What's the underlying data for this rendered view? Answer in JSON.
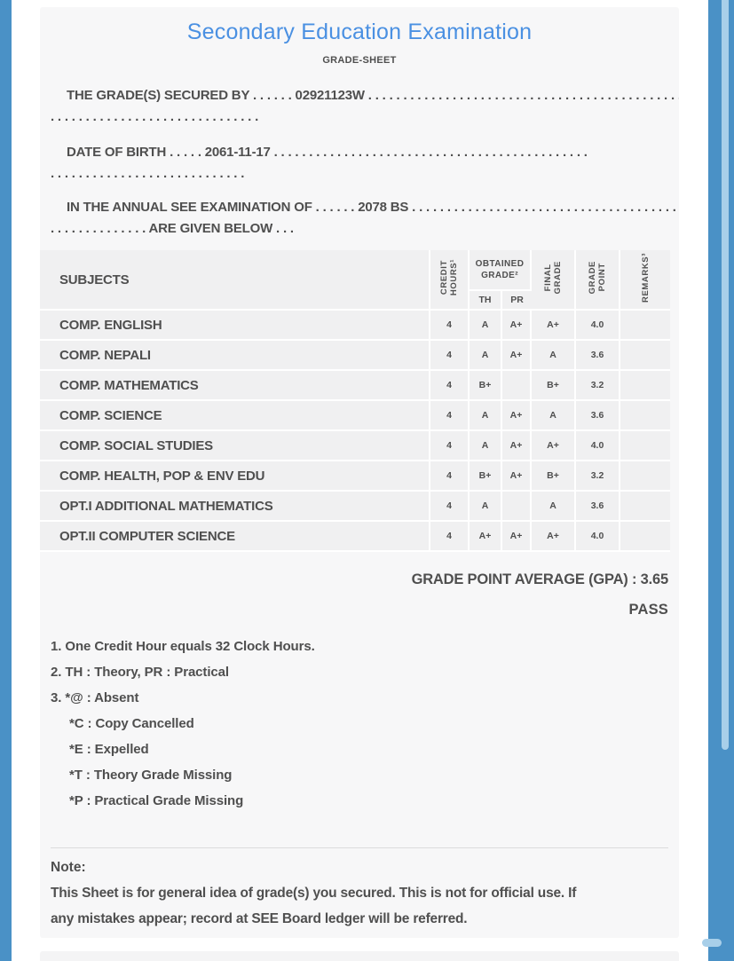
{
  "colors": {
    "accent_blue": "#4a91c6",
    "scroll_thumb": "#a8cfe9",
    "title_blue": "#4a90e2",
    "card_bg": "#f7f7f8",
    "cell_bg": "#f0f0f1",
    "text": "#4f4f4f",
    "divider": "#dcdcdc"
  },
  "header": {
    "title": "Secondary Education Examination",
    "subtitle": "GRADE-SHEET"
  },
  "intro": {
    "grades_secured": {
      "line1": "THE GRADE(S) SECURED BY . . . . . . 02921123W . . . . . . . . . . . . . . . . . . . . . . . . . . . . . . . . . . . . . . . . . . . . .",
      "line2": ". . . . . . . . . . . . . . . . . . . . . . . . . . . . . ."
    },
    "date_of_birth": {
      "line1": "DATE OF BIRTH . . . . . 2061-11-17 . . . . . . . . . . . . . . . . . . . . . . . . . . . . . . . . . . . . . . . . . . . . .",
      "line2": ". . . . . . . . . . . . . . . . . . . . . . . . . . . ."
    },
    "examination": {
      "line1": "IN THE ANNUAL SEE EXAMINATION OF . . . . . . 2078 BS . . . . . . . . . . . . . . . . . . . . . . . . . . . . . . . . . . . . . . . . . . . . .",
      "line2": ". . . . . . . . . . . . . . ARE GIVEN BELOW . . ."
    }
  },
  "table": {
    "headers": {
      "subjects": "SUBJECTS",
      "credit_hours": "CREDIT\nHOURS¹",
      "obtained_grade": "OBTAINED\nGRADE²",
      "th": "TH",
      "pr": "PR",
      "final_grade": "FINAL\nGRADE",
      "grade_point": "GRADE\nPOINT",
      "remarks": "REMARKS³"
    },
    "rows": [
      {
        "subject": "COMP. ENGLISH",
        "credit": "4",
        "th": "A",
        "pr": "A+",
        "final": "A+",
        "point": "4.0",
        "remarks": ""
      },
      {
        "subject": "COMP. NEPALI",
        "credit": "4",
        "th": "A",
        "pr": "A+",
        "final": "A",
        "point": "3.6",
        "remarks": ""
      },
      {
        "subject": "COMP. MATHEMATICS",
        "credit": "4",
        "th": "B+",
        "pr": "",
        "final": "B+",
        "point": "3.2",
        "remarks": ""
      },
      {
        "subject": "COMP. SCIENCE",
        "credit": "4",
        "th": "A",
        "pr": "A+",
        "final": "A",
        "point": "3.6",
        "remarks": ""
      },
      {
        "subject": "COMP. SOCIAL STUDIES",
        "credit": "4",
        "th": "A",
        "pr": "A+",
        "final": "A+",
        "point": "4.0",
        "remarks": ""
      },
      {
        "subject": "COMP. HEALTH, POP & ENV EDU",
        "credit": "4",
        "th": "B+",
        "pr": "A+",
        "final": "B+",
        "point": "3.2",
        "remarks": ""
      },
      {
        "subject": "OPT.I ADDITIONAL MATHEMATICS",
        "credit": "4",
        "th": "A",
        "pr": "",
        "final": "A",
        "point": "3.6",
        "remarks": ""
      },
      {
        "subject": "OPT.II COMPUTER SCIENCE",
        "credit": "4",
        "th": "A+",
        "pr": "A+",
        "final": "A+",
        "point": "4.0",
        "remarks": ""
      }
    ]
  },
  "summary": {
    "gpa_label": "GRADE POINT AVERAGE (GPA) :",
    "gpa_value": "3.65",
    "result": "PASS"
  },
  "footnotes": [
    "1. One Credit Hour equals 32 Clock Hours.",
    "2. TH : Theory, PR : Practical",
    "3. *@ : Absent",
    "*C : Copy Cancelled",
    "*E : Expelled",
    "*T : Theory Grade Missing",
    "*P : Practical Grade Missing"
  ],
  "note": {
    "label": "Note:",
    "line1": "This Sheet is for general idea of grade(s) you secured. This is not for official use. If",
    "line2": "any mistakes appear; record at SEE Board ledger will be referred."
  }
}
